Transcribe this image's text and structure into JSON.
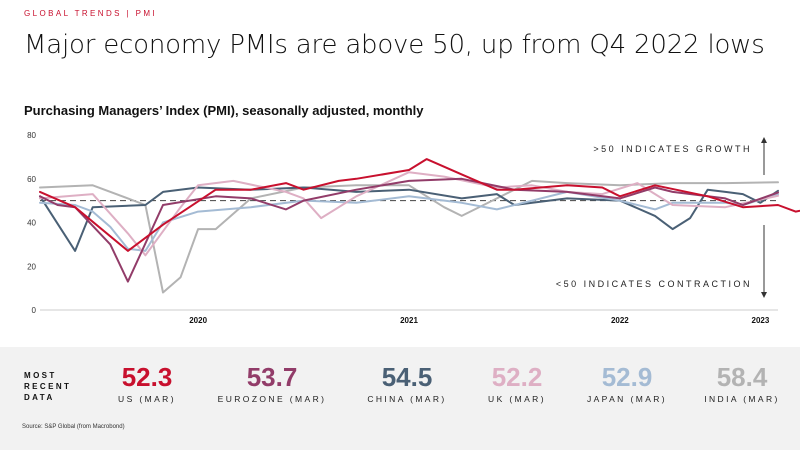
{
  "header": {
    "eyebrow": "GLOBAL TRENDS | PMI",
    "title": "Major economy PMIs are above 50, up from Q4 2022 lows",
    "subtitle": "Purchasing Managers’ Index (PMI), seasonally adjusted, monthly"
  },
  "chart_data": {
    "type": "line",
    "title": "Purchasing Managers’ Index (PMI), seasonally adjusted, monthly",
    "x_start": "2019-09",
    "x_end": "2023-03",
    "x_tick_labels": [
      {
        "label": "2020",
        "date": "2020-06"
      },
      {
        "label": "2021",
        "date": "2021-06"
      },
      {
        "label": "2022",
        "date": "2022-06"
      },
      {
        "label": "2023",
        "date": "2023-02"
      }
    ],
    "y_ticks": [
      0,
      20,
      40,
      60,
      80
    ],
    "ylim": [
      0,
      80
    ],
    "reference_line": {
      "value": 50,
      "style": "dashed"
    },
    "annotations": {
      "growth": ">50 INDICATES GROWTH",
      "contraction": "<50 INDICATES CONTRACTION"
    },
    "series": [
      {
        "name": "INDIA (MAR)",
        "color": "#b3b3b3",
        "points": [
          [
            "2019-09",
            56
          ],
          [
            "2019-12",
            57
          ],
          [
            "2020-02",
            51
          ],
          [
            "2020-03",
            48
          ],
          [
            "2020-04",
            8
          ],
          [
            "2020-05",
            15
          ],
          [
            "2020-06",
            37
          ],
          [
            "2020-07",
            37
          ],
          [
            "2020-09",
            51
          ],
          [
            "2020-12",
            56
          ],
          [
            "2021-03",
            57
          ],
          [
            "2021-06",
            57
          ],
          [
            "2021-08",
            47
          ],
          [
            "2021-09",
            43
          ],
          [
            "2021-11",
            51
          ],
          [
            "2022-01",
            59
          ],
          [
            "2022-03",
            58
          ],
          [
            "2022-06",
            57
          ],
          [
            "2022-09",
            58
          ],
          [
            "2022-12",
            58
          ],
          [
            "2023-03",
            58.4
          ]
        ]
      },
      {
        "name": "CHINA (MAR)",
        "color": "#4a6075",
        "points": [
          [
            "2019-09",
            52
          ],
          [
            "2019-11",
            27
          ],
          [
            "2019-12",
            47
          ],
          [
            "2020-03",
            48
          ],
          [
            "2020-04",
            54
          ],
          [
            "2020-06",
            56
          ],
          [
            "2020-09",
            55
          ],
          [
            "2020-12",
            56
          ],
          [
            "2021-03",
            54
          ],
          [
            "2021-06",
            55
          ],
          [
            "2021-09",
            51
          ],
          [
            "2021-11",
            53
          ],
          [
            "2021-12",
            48
          ],
          [
            "2022-03",
            51
          ],
          [
            "2022-06",
            50
          ],
          [
            "2022-08",
            43
          ],
          [
            "2022-09",
            37
          ],
          [
            "2022-10",
            42
          ],
          [
            "2022-11",
            55
          ],
          [
            "2022-12",
            54
          ],
          [
            "2023-01",
            53
          ],
          [
            "2023-02",
            49
          ],
          [
            "2023-03",
            54.5
          ]
        ]
      },
      {
        "name": "JAPAN (MAR)",
        "color": "#a4bbd4",
        "points": [
          [
            "2019-09",
            49
          ],
          [
            "2019-11",
            48
          ],
          [
            "2019-12",
            45
          ],
          [
            "2020-01",
            38
          ],
          [
            "2020-02",
            28
          ],
          [
            "2020-03",
            27
          ],
          [
            "2020-04",
            40
          ],
          [
            "2020-06",
            45
          ],
          [
            "2020-09",
            47
          ],
          [
            "2020-12",
            50
          ],
          [
            "2021-03",
            49
          ],
          [
            "2021-06",
            52
          ],
          [
            "2021-09",
            49
          ],
          [
            "2021-11",
            46
          ],
          [
            "2022-03",
            54
          ],
          [
            "2022-06",
            50
          ],
          [
            "2022-08",
            46
          ],
          [
            "2022-09",
            49
          ],
          [
            "2022-12",
            49
          ],
          [
            "2023-01",
            48
          ],
          [
            "2023-03",
            52.9
          ]
        ]
      },
      {
        "name": "UK (MAR)",
        "color": "#deafc4",
        "points": [
          [
            "2019-09",
            51
          ],
          [
            "2019-12",
            53
          ],
          [
            "2020-02",
            35
          ],
          [
            "2020-03",
            25
          ],
          [
            "2020-05",
            47
          ],
          [
            "2020-06",
            57
          ],
          [
            "2020-08",
            59
          ],
          [
            "2020-11",
            54
          ],
          [
            "2020-12",
            51
          ],
          [
            "2021-01",
            42
          ],
          [
            "2021-03",
            52
          ],
          [
            "2021-06",
            63
          ],
          [
            "2021-08",
            61
          ],
          [
            "2021-11",
            56
          ],
          [
            "2022-01",
            57
          ],
          [
            "2022-03",
            54
          ],
          [
            "2022-05",
            53
          ],
          [
            "2022-07",
            58
          ],
          [
            "2022-09",
            48
          ],
          [
            "2022-12",
            47
          ],
          [
            "2023-03",
            52.2
          ]
        ]
      },
      {
        "name": "EUROZONE (MAR)",
        "color": "#923c69",
        "points": [
          [
            "2019-09",
            52
          ],
          [
            "2019-10",
            48
          ],
          [
            "2019-11",
            47
          ],
          [
            "2020-01",
            30
          ],
          [
            "2020-02",
            13
          ],
          [
            "2020-04",
            48
          ],
          [
            "2020-07",
            52
          ],
          [
            "2020-09",
            51
          ],
          [
            "2020-11",
            46
          ],
          [
            "2020-12",
            50
          ],
          [
            "2021-03",
            55
          ],
          [
            "2021-06",
            59
          ],
          [
            "2021-09",
            60
          ],
          [
            "2021-12",
            55
          ],
          [
            "2022-03",
            54
          ],
          [
            "2022-06",
            51
          ],
          [
            "2022-08",
            56
          ],
          [
            "2022-09",
            54
          ],
          [
            "2022-12",
            51
          ],
          [
            "2023-01",
            48
          ],
          [
            "2023-03",
            53.7
          ]
        ]
      },
      {
        "name": "US (MAR)",
        "color": "#c8102e",
        "points": [
          [
            "2019-09",
            54
          ],
          [
            "2019-11",
            47
          ],
          [
            "2020-02",
            27
          ],
          [
            "2020-04",
            39
          ],
          [
            "2020-07",
            55
          ],
          [
            "2020-09",
            55
          ],
          [
            "2020-11",
            58
          ],
          [
            "2020-12",
            55
          ],
          [
            "2021-02",
            59
          ],
          [
            "2021-03",
            60
          ],
          [
            "2021-06",
            64
          ],
          [
            "2021-07",
            69
          ],
          [
            "2021-09",
            62
          ],
          [
            "2021-11",
            55
          ],
          [
            "2021-12",
            55
          ],
          [
            "2022-03",
            57
          ],
          [
            "2022-05",
            56
          ],
          [
            "2022-06",
            52
          ],
          [
            "2022-08",
            57
          ],
          [
            "2022-11",
            52
          ],
          [
            "2023-01",
            47
          ],
          [
            "2023-03",
            48
          ],
          [
            "2023-04",
            45
          ],
          [
            "2023-06",
            48
          ],
          [
            "2023-08",
            52.3
          ]
        ]
      }
    ]
  },
  "summary": {
    "heading_lines": [
      "MOST",
      "RECENT",
      "DATA"
    ],
    "stats": [
      {
        "value": "52.3",
        "label": "US (MAR)",
        "color": "#c8102e"
      },
      {
        "value": "53.7",
        "label": "EUROZONE (MAR)",
        "color": "#923c69"
      },
      {
        "value": "54.5",
        "label": "CHINA (MAR)",
        "color": "#4a6075"
      },
      {
        "value": "52.2",
        "label": "UK (MAR)",
        "color": "#deafc4"
      },
      {
        "value": "52.9",
        "label": "JAPAN (MAR)",
        "color": "#a4bbd4"
      },
      {
        "value": "58.4",
        "label": "INDIA (MAR)",
        "color": "#b3b3b3"
      }
    ]
  },
  "source": "Source: S&P Global (from Macrobond)"
}
